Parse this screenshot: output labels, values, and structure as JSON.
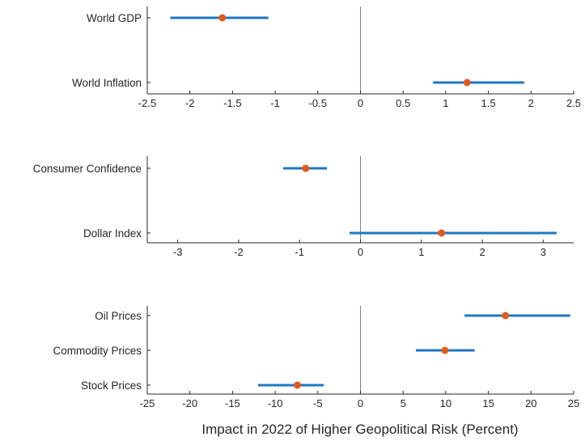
{
  "colors": {
    "interval": "#1f77c0",
    "point": "#e05a1d",
    "axis": "#262626",
    "zero_line": "#808080"
  },
  "xlabel": "Impact in 2022 of Higher Geopolitical Risk (Percent)",
  "chart_data": [
    {
      "type": "scatter",
      "style": "dot-and-whisker",
      "xlim": [
        -2.5,
        2.5
      ],
      "xticks": [
        -2.5,
        -2,
        -1.5,
        -1,
        -0.5,
        0,
        0.5,
        1,
        1.5,
        2,
        2.5
      ],
      "xtick_labels": [
        "-2.5",
        "-2",
        "-1.5",
        "-1",
        "-0.5",
        "0",
        "0.5",
        "1",
        "1.5",
        "2",
        "2.5"
      ],
      "grid": false,
      "series": [
        {
          "label": "World GDP",
          "point": -1.62,
          "low": -2.23,
          "high": -1.08
        },
        {
          "label": "World Inflation",
          "point": 1.25,
          "low": 0.85,
          "high": 1.92
        }
      ]
    },
    {
      "type": "scatter",
      "style": "dot-and-whisker",
      "xlim": [
        -3.5,
        3.5
      ],
      "xticks": [
        -3,
        -2,
        -1,
        0,
        1,
        2,
        3
      ],
      "xtick_labels": [
        "-3",
        "-2",
        "-1",
        "0",
        "1",
        "2",
        "3"
      ],
      "grid": false,
      "series": [
        {
          "label": "Consumer Confidence",
          "point": -0.9,
          "low": -1.27,
          "high": -0.55
        },
        {
          "label": "Dollar Index",
          "point": 1.33,
          "low": -0.18,
          "high": 3.22
        }
      ]
    },
    {
      "type": "scatter",
      "style": "dot-and-whisker",
      "xlim": [
        -25,
        25
      ],
      "xticks": [
        -25,
        -20,
        -15,
        -10,
        -5,
        0,
        5,
        10,
        15,
        20,
        25
      ],
      "xtick_labels": [
        "-25",
        "-20",
        "-15",
        "-10",
        "-5",
        "0",
        "5",
        "10",
        "15",
        "20",
        "25"
      ],
      "grid": false,
      "xlabel": "Impact in 2022 of Higher Geopolitical Risk (Percent)",
      "series": [
        {
          "label": "Oil Prices",
          "point": 17.0,
          "low": 12.2,
          "high": 24.6
        },
        {
          "label": "Commodity Prices",
          "point": 9.9,
          "low": 6.5,
          "high": 13.4
        },
        {
          "label": "Stock Prices",
          "point": -7.4,
          "low": -12.0,
          "high": -4.3
        }
      ]
    }
  ]
}
